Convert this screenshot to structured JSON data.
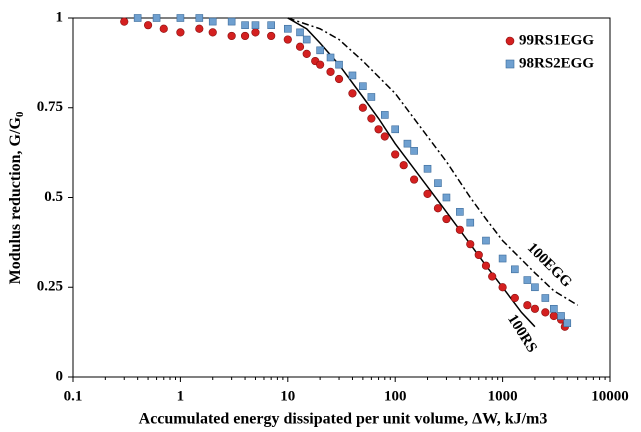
{
  "chart_data": {
    "type": "scatter",
    "x_label": "Accumulated energy dissipated per unit volume, ΔW, kJ/m3",
    "y_label": "Modulus reduction, G/G",
    "y_label_sub": "0",
    "log_x": true,
    "xlim": [
      0.1,
      10000
    ],
    "xticks": [
      0.1,
      1,
      10,
      100,
      1000,
      10000
    ],
    "ylim": [
      0,
      1
    ],
    "yticks": [
      0,
      0.25,
      0.5,
      0.75,
      1
    ],
    "legend": "top-right",
    "series": [
      {
        "name": "99RS1EGG",
        "color": "#d42020",
        "marker": "circle",
        "x": [
          0.3,
          0.5,
          0.7,
          1,
          1.5,
          2,
          3,
          4,
          5,
          7,
          10,
          13,
          15,
          18,
          20,
          25,
          30,
          40,
          50,
          60,
          70,
          80,
          100,
          120,
          150,
          200,
          250,
          300,
          400,
          500,
          600,
          700,
          800,
          1000,
          1300,
          1700,
          2000,
          2500,
          3000,
          3500,
          3800
        ],
        "values": [
          0.99,
          0.98,
          0.97,
          0.96,
          0.97,
          0.96,
          0.95,
          0.95,
          0.96,
          0.95,
          0.94,
          0.92,
          0.9,
          0.88,
          0.87,
          0.85,
          0.83,
          0.79,
          0.75,
          0.72,
          0.69,
          0.67,
          0.62,
          0.59,
          0.55,
          0.51,
          0.47,
          0.44,
          0.41,
          0.37,
          0.34,
          0.31,
          0.28,
          0.25,
          0.22,
          0.2,
          0.19,
          0.18,
          0.17,
          0.16,
          0.14
        ]
      },
      {
        "name": "98RS2EGG",
        "color": "#6fa0d0",
        "marker": "square",
        "x": [
          0.4,
          0.6,
          1,
          1.5,
          2,
          3,
          4,
          5,
          7,
          10,
          13,
          15,
          20,
          25,
          30,
          40,
          50,
          60,
          80,
          100,
          130,
          150,
          200,
          250,
          300,
          400,
          500,
          700,
          1000,
          1300,
          1700,
          2000,
          2500,
          3000,
          3500,
          4000
        ],
        "values": [
          1,
          1,
          1,
          1,
          0.99,
          0.99,
          0.98,
          0.98,
          0.98,
          0.97,
          0.96,
          0.94,
          0.91,
          0.89,
          0.87,
          0.84,
          0.81,
          0.78,
          0.73,
          0.69,
          0.65,
          0.63,
          0.58,
          0.54,
          0.5,
          0.46,
          0.43,
          0.38,
          0.33,
          0.3,
          0.27,
          0.25,
          0.22,
          0.19,
          0.17,
          0.15
        ]
      }
    ],
    "curves": [
      {
        "name": "100RS",
        "style": "solid",
        "x": [
          10,
          15,
          20,
          30,
          50,
          70,
          100,
          200,
          300,
          500,
          700,
          1000,
          1500,
          2000
        ],
        "values": [
          1,
          0.97,
          0.93,
          0.87,
          0.78,
          0.72,
          0.65,
          0.53,
          0.46,
          0.37,
          0.31,
          0.25,
          0.18,
          0.14
        ]
      },
      {
        "name": "100EGG",
        "style": "dash-dot",
        "x": [
          10,
          20,
          30,
          50,
          100,
          200,
          300,
          500,
          700,
          1000,
          2000,
          3000,
          5000
        ],
        "values": [
          1,
          0.97,
          0.94,
          0.88,
          0.79,
          0.67,
          0.6,
          0.5,
          0.44,
          0.38,
          0.29,
          0.24,
          0.2
        ]
      }
    ]
  }
}
